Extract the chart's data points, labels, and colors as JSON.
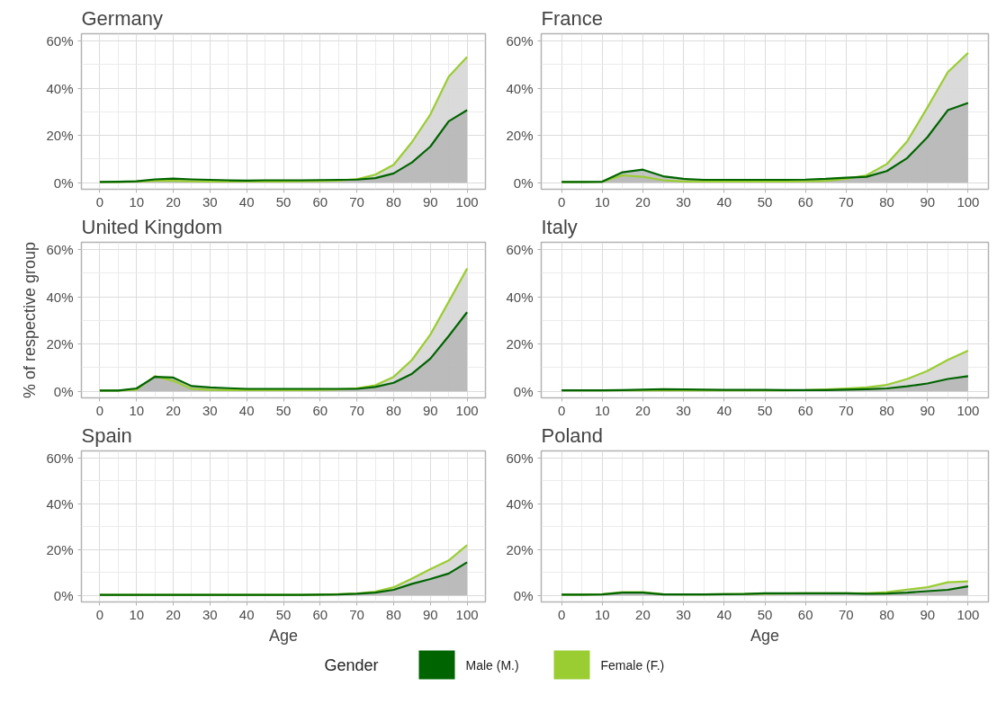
{
  "chart_data": [
    {
      "type": "area",
      "title": "Germany",
      "x": [
        0,
        5,
        10,
        15,
        20,
        25,
        30,
        35,
        40,
        45,
        50,
        55,
        60,
        65,
        70,
        75,
        80,
        85,
        90,
        95,
        100
      ],
      "xlim": [
        -5,
        105
      ],
      "ylim": [
        -2.8,
        63.1
      ],
      "xticks": [
        0,
        10,
        20,
        30,
        40,
        50,
        60,
        70,
        80,
        90,
        100
      ],
      "yticks": [
        {
          "value": 0,
          "label": "0%"
        },
        {
          "value": 20,
          "label": "20%"
        },
        {
          "value": 40,
          "label": "40%"
        },
        {
          "value": 60,
          "label": "60%"
        }
      ],
      "grid": true,
      "legend": "bottom",
      "legend_title": "Gender",
      "series": [
        {
          "name": "Male (M.)",
          "color": "#006400",
          "values": [
            0.3,
            0.4,
            0.6,
            1.4,
            1.7,
            1.4,
            1.2,
            1.0,
            0.9,
            1.0,
            1.0,
            1.0,
            1.1,
            1.2,
            1.3,
            1.9,
            3.9,
            8.6,
            15.3,
            26,
            30.7
          ]
        },
        {
          "name": "Female (F.)",
          "color": "#9acd32",
          "values": [
            0.3,
            0.3,
            0.5,
            0.8,
            0.8,
            0.6,
            0.5,
            0.5,
            0.5,
            0.5,
            0.5,
            0.6,
            0.7,
            0.9,
            1.5,
            3.4,
            7.6,
            17.2,
            28.9,
            44.9,
            53.3
          ]
        }
      ]
    },
    {
      "type": "area",
      "title": "France",
      "x": [
        0,
        5,
        10,
        15,
        20,
        25,
        30,
        35,
        40,
        45,
        50,
        55,
        60,
        65,
        70,
        75,
        80,
        85,
        90,
        95,
        100
      ],
      "xlim": [
        -5,
        105
      ],
      "ylim": [
        -2.8,
        63.1
      ],
      "xticks": [
        0,
        10,
        20,
        30,
        40,
        50,
        60,
        70,
        80,
        90,
        100
      ],
      "yticks": [
        {
          "value": 0,
          "label": "0%"
        },
        {
          "value": 20,
          "label": "20%"
        },
        {
          "value": 40,
          "label": "40%"
        },
        {
          "value": 60,
          "label": "60%"
        }
      ],
      "grid": true,
      "series": [
        {
          "color": "#006400",
          "values": [
            0.3,
            0.3,
            0.4,
            4.4,
            5.5,
            2.7,
            1.6,
            1.2,
            1.2,
            1.2,
            1.2,
            1.2,
            1.3,
            1.6,
            2.1,
            2.5,
            4.9,
            10.4,
            19.3,
            30.7,
            33.8
          ]
        },
        {
          "color": "#9acd32",
          "values": [
            0.3,
            0.3,
            0.4,
            3.1,
            2.5,
            1.0,
            0.5,
            0.5,
            0.5,
            0.5,
            0.5,
            0.5,
            0.6,
            0.8,
            1.6,
            3.1,
            7.9,
            17.5,
            31.9,
            46.8,
            55
          ]
        }
      ]
    },
    {
      "type": "area",
      "title": "United Kingdom",
      "ylabel": "% of respective group",
      "x": [
        0,
        5,
        10,
        15,
        20,
        25,
        30,
        35,
        40,
        45,
        50,
        55,
        60,
        65,
        70,
        75,
        80,
        85,
        90,
        95,
        100
      ],
      "xlim": [
        -5,
        105
      ],
      "ylim": [
        -2.8,
        63.1
      ],
      "xticks": [
        0,
        10,
        20,
        30,
        40,
        50,
        60,
        70,
        80,
        90,
        100
      ],
      "yticks": [
        {
          "value": 0,
          "label": "0%"
        },
        {
          "value": 20,
          "label": "20%"
        },
        {
          "value": 40,
          "label": "40%"
        },
        {
          "value": 60,
          "label": "60%"
        }
      ],
      "grid": true,
      "series": [
        {
          "color": "#006400",
          "values": [
            0.3,
            0.3,
            1.2,
            6.1,
            5.8,
            2.2,
            1.6,
            1.3,
            1.0,
            1.0,
            1.0,
            1.0,
            1.0,
            1.0,
            1.0,
            1.8,
            3.6,
            7.4,
            13.8,
            23.4,
            33.5
          ]
        },
        {
          "color": "#9acd32",
          "values": [
            0.3,
            0.3,
            0.7,
            6.4,
            4.4,
            1.0,
            0.6,
            0.5,
            0.5,
            0.5,
            0.5,
            0.5,
            0.6,
            0.8,
            1.3,
            2.5,
            6.1,
            13.3,
            24,
            37.9,
            52
          ]
        }
      ]
    },
    {
      "type": "area",
      "title": "Italy",
      "x": [
        0,
        5,
        10,
        15,
        20,
        25,
        30,
        35,
        40,
        45,
        50,
        55,
        60,
        65,
        70,
        75,
        80,
        85,
        90,
        95,
        100
      ],
      "xlim": [
        -5,
        105
      ],
      "ylim": [
        -2.8,
        63.1
      ],
      "xticks": [
        0,
        10,
        20,
        30,
        40,
        50,
        60,
        70,
        80,
        90,
        100
      ],
      "yticks": [
        {
          "value": 0,
          "label": "0%"
        },
        {
          "value": 20,
          "label": "20%"
        },
        {
          "value": 40,
          "label": "40%"
        },
        {
          "value": 60,
          "label": "60%"
        }
      ],
      "grid": true,
      "series": [
        {
          "color": "#006400",
          "values": [
            0.4,
            0.4,
            0.4,
            0.5,
            0.7,
            0.9,
            0.8,
            0.7,
            0.6,
            0.6,
            0.6,
            0.5,
            0.5,
            0.5,
            0.7,
            0.9,
            1.2,
            2.1,
            3.3,
            5.2,
            6.4
          ]
        },
        {
          "color": "#9acd32",
          "values": [
            0.4,
            0.4,
            0.4,
            0.4,
            0.4,
            0.4,
            0.4,
            0.4,
            0.4,
            0.4,
            0.4,
            0.4,
            0.5,
            0.8,
            1.2,
            1.6,
            2.7,
            5.2,
            8.6,
            13.3,
            17.2
          ]
        }
      ]
    },
    {
      "type": "area",
      "title": "Spain",
      "xlabel": "Age",
      "x": [
        0,
        5,
        10,
        15,
        20,
        25,
        30,
        35,
        40,
        45,
        50,
        55,
        60,
        65,
        70,
        75,
        80,
        85,
        90,
        95,
        100
      ],
      "xlim": [
        -5,
        105
      ],
      "ylim": [
        -2.8,
        63.1
      ],
      "xticks": [
        0,
        10,
        20,
        30,
        40,
        50,
        60,
        70,
        80,
        90,
        100
      ],
      "yticks": [
        {
          "value": 0,
          "label": "0%"
        },
        {
          "value": 20,
          "label": "20%"
        },
        {
          "value": 40,
          "label": "40%"
        },
        {
          "value": 60,
          "label": "60%"
        }
      ],
      "grid": true,
      "series": [
        {
          "color": "#006400",
          "values": [
            0.3,
            0.3,
            0.3,
            0.3,
            0.3,
            0.3,
            0.3,
            0.3,
            0.3,
            0.3,
            0.3,
            0.3,
            0.4,
            0.5,
            0.8,
            1.3,
            2.5,
            5.1,
            7.2,
            9.6,
            14.5
          ]
        },
        {
          "color": "#9acd32",
          "values": [
            0.3,
            0.3,
            0.3,
            0.3,
            0.3,
            0.3,
            0.3,
            0.3,
            0.3,
            0.3,
            0.3,
            0.3,
            0.4,
            0.6,
            0.9,
            1.7,
            3.6,
            7.4,
            11.5,
            15.3,
            22
          ]
        }
      ]
    },
    {
      "type": "area",
      "title": "Poland",
      "xlabel": "Age",
      "x": [
        0,
        5,
        10,
        15,
        20,
        25,
        30,
        35,
        40,
        45,
        50,
        55,
        60,
        65,
        70,
        75,
        80,
        85,
        90,
        95,
        100
      ],
      "xlim": [
        -5,
        105
      ],
      "ylim": [
        -2.8,
        63.1
      ],
      "xticks": [
        0,
        10,
        20,
        30,
        40,
        50,
        60,
        70,
        80,
        90,
        100
      ],
      "yticks": [
        {
          "value": 0,
          "label": "0%"
        },
        {
          "value": 20,
          "label": "20%"
        },
        {
          "value": 40,
          "label": "40%"
        },
        {
          "value": 60,
          "label": "60%"
        }
      ],
      "grid": true,
      "series": [
        {
          "color": "#006400",
          "values": [
            0.4,
            0.4,
            0.5,
            1.3,
            1.3,
            0.5,
            0.5,
            0.5,
            0.6,
            0.7,
            1.0,
            1.0,
            1.0,
            1.0,
            1.0,
            0.8,
            0.9,
            1.3,
            1.9,
            2.5,
            4.0
          ]
        },
        {
          "color": "#9acd32",
          "values": [
            0.4,
            0.4,
            0.6,
            1.5,
            1.5,
            0.6,
            0.5,
            0.5,
            0.6,
            0.7,
            0.8,
            0.9,
            1.0,
            1.0,
            1.0,
            1.0,
            1.5,
            2.6,
            3.6,
            5.8,
            6.2
          ]
        }
      ]
    }
  ]
}
